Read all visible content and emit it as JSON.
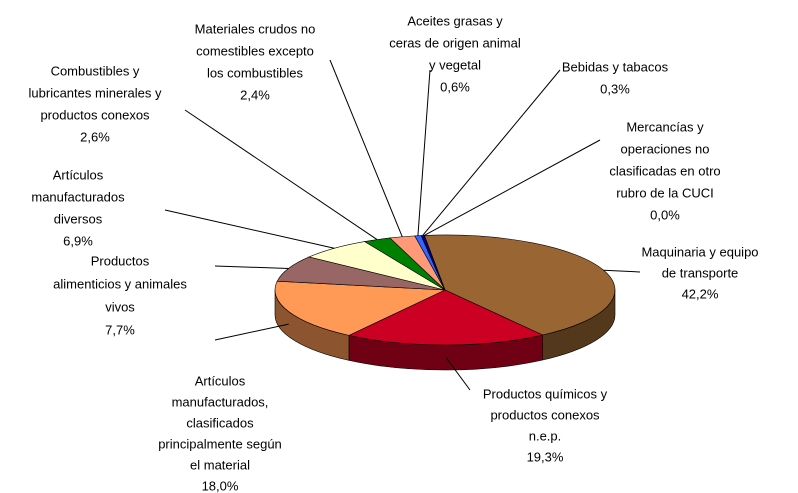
{
  "chart_data": {
    "type": "pie3d",
    "categories": [
      [
        "Maquinaria y equipo",
        "de transporte"
      ],
      [
        "Productos químicos y",
        "productos conexos",
        "n.e.p."
      ],
      [
        "Artículos",
        "manufacturados,",
        "clasificados",
        "principalmente según",
        "el material"
      ],
      [
        "Productos",
        "alimenticios y animales",
        "vivos"
      ],
      [
        "Artículos",
        "manufacturados",
        "diversos"
      ],
      [
        "Combustibles y",
        "lubricantes minerales y",
        "productos conexos"
      ],
      [
        "Materiales crudos no",
        "comestibles  excepto",
        "los combustibles"
      ],
      [
        "Aceites  grasas y",
        "ceras de origen animal",
        "y vegetal"
      ],
      [
        "Bebidas y tabacos"
      ],
      [
        "Mercancías y",
        "operaciones no",
        "clasificadas en otro",
        "rubro de la CUCI"
      ]
    ],
    "values": [
      42.2,
      19.3,
      18.0,
      7.7,
      6.9,
      2.6,
      2.4,
      0.6,
      0.3,
      0.0
    ],
    "value_labels": [
      "42,2%",
      "19,3%",
      "18,0%",
      "7,7%",
      "6,9%",
      "2,6%",
      "2,4%",
      "0,6%",
      "0,3%",
      "0,0%"
    ],
    "colors": [
      "#996633",
      "#cc0022",
      "#ff9955",
      "#996666",
      "#ffffcc",
      "#008000",
      "#ff9977",
      "#3366ff",
      "#000080",
      "#808080"
    ]
  }
}
